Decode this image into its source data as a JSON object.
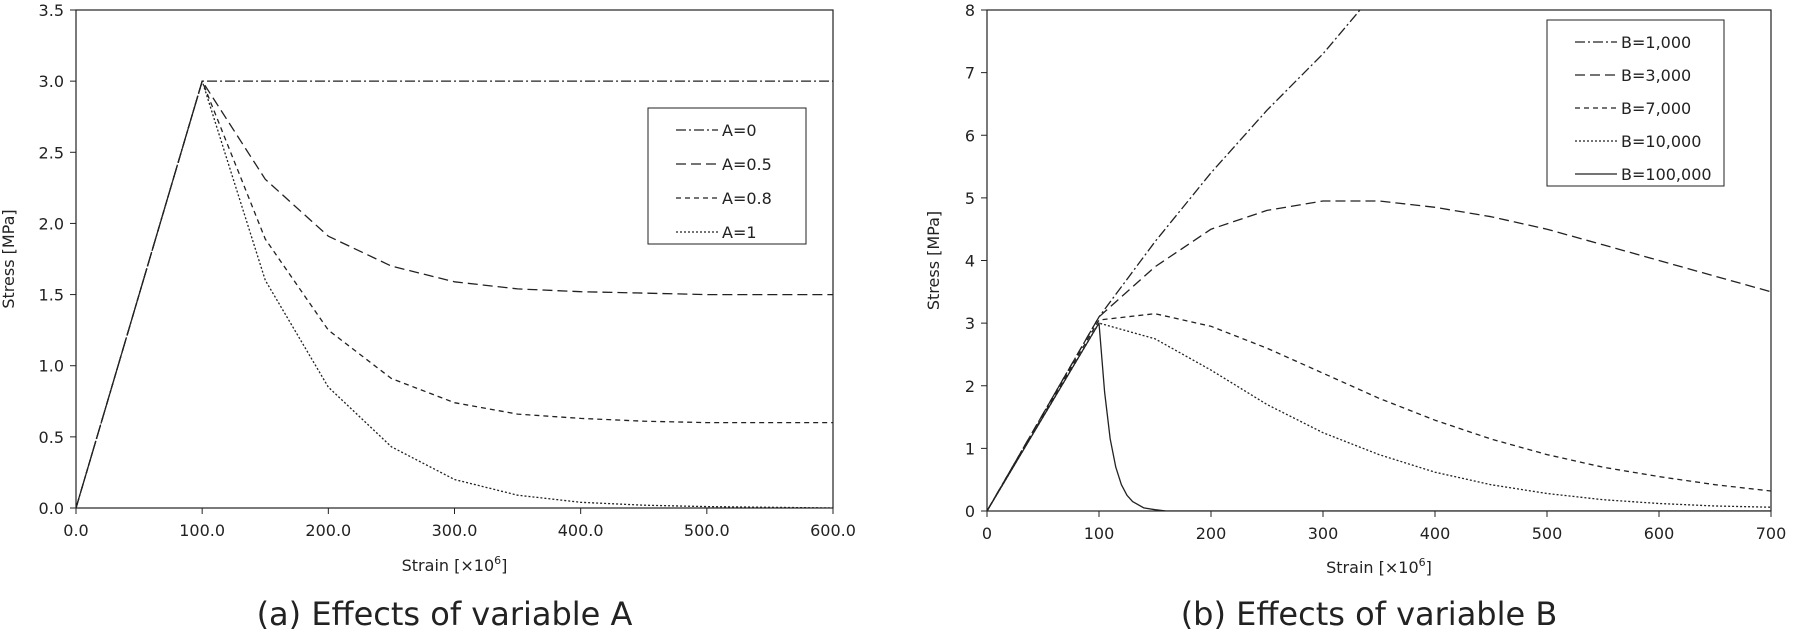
{
  "chart_data": [
    {
      "type": "line",
      "caption": "(a) Effects of variable A",
      "xlabel": "Strain [×10",
      "xlabel_sup": "6",
      "xlabel_end": "]",
      "ylabel": "Stress [MPa]",
      "xlim": [
        0,
        600
      ],
      "ylim": [
        0,
        3.5
      ],
      "xticks": [
        "0.0",
        "100.0",
        "200.0",
        "300.0",
        "400.0",
        "500.0",
        "600.0"
      ],
      "xtick_values": [
        0,
        100,
        200,
        300,
        400,
        500,
        600
      ],
      "yticks": [
        "0.0",
        "0.5",
        "1.0",
        "1.5",
        "2.0",
        "2.5",
        "3.0",
        "3.5"
      ],
      "ytick_values": [
        0,
        0.5,
        1.0,
        1.5,
        2.0,
        2.5,
        3.0,
        3.5
      ],
      "legend_position": "right",
      "series": [
        {
          "name": "A=0",
          "dash": "dashdot",
          "x": [
            0,
            100,
            600
          ],
          "y": [
            0,
            3.0,
            3.0
          ]
        },
        {
          "name": "A=0.5",
          "dash": "longdash",
          "x": [
            0,
            100,
            150,
            200,
            250,
            300,
            350,
            400,
            450,
            500,
            600
          ],
          "y": [
            0,
            3.0,
            2.31,
            1.91,
            1.7,
            1.59,
            1.54,
            1.52,
            1.51,
            1.5,
            1.5
          ]
        },
        {
          "name": "A=0.8",
          "dash": "shortdash",
          "x": [
            0,
            100,
            150,
            200,
            250,
            300,
            350,
            400,
            450,
            500,
            600
          ],
          "y": [
            0,
            3.0,
            1.89,
            1.25,
            0.91,
            0.74,
            0.66,
            0.63,
            0.61,
            0.6,
            0.6
          ]
        },
        {
          "name": "A=1",
          "dash": "dotted",
          "x": [
            0,
            100,
            150,
            200,
            250,
            300,
            350,
            400,
            450,
            500,
            600
          ],
          "y": [
            0,
            3.0,
            1.6,
            0.85,
            0.43,
            0.2,
            0.09,
            0.04,
            0.02,
            0.01,
            0.0
          ]
        }
      ]
    },
    {
      "type": "line",
      "caption": "(b) Effects of variable B",
      "xlabel": "Strain [×10",
      "xlabel_sup": "6",
      "xlabel_end": "]",
      "ylabel": "Stress [MPa]",
      "xlim": [
        0,
        700
      ],
      "ylim": [
        0,
        8
      ],
      "xticks": [
        "0",
        "100",
        "200",
        "300",
        "400",
        "500",
        "600",
        "700"
      ],
      "xtick_values": [
        0,
        100,
        200,
        300,
        400,
        500,
        600,
        700
      ],
      "yticks": [
        "0",
        "1",
        "2",
        "3",
        "4",
        "5",
        "6",
        "7",
        "8"
      ],
      "ytick_values": [
        0,
        1,
        2,
        3,
        4,
        5,
        6,
        7,
        8
      ],
      "legend_position": "top-right",
      "series": [
        {
          "name": "B=1,000",
          "dash": "dashdot",
          "x": [
            0,
            100,
            150,
            200,
            250,
            300,
            333
          ],
          "y": [
            0,
            3.1,
            4.3,
            5.4,
            6.4,
            7.3,
            8.0
          ]
        },
        {
          "name": "B=3,000",
          "dash": "longdash",
          "x": [
            0,
            100,
            150,
            200,
            250,
            300,
            350,
            400,
            450,
            500,
            550,
            600,
            650,
            700
          ],
          "y": [
            0,
            3.1,
            3.9,
            4.5,
            4.8,
            4.95,
            4.95,
            4.85,
            4.7,
            4.5,
            4.25,
            4.0,
            3.75,
            3.5
          ]
        },
        {
          "name": "B=7,000",
          "dash": "shortdash",
          "x": [
            0,
            100,
            150,
            200,
            250,
            300,
            350,
            400,
            450,
            500,
            550,
            600,
            650,
            700
          ],
          "y": [
            0,
            3.05,
            3.15,
            2.95,
            2.6,
            2.2,
            1.8,
            1.45,
            1.15,
            0.9,
            0.7,
            0.55,
            0.42,
            0.32
          ]
        },
        {
          "name": "B=10,000",
          "dash": "dotted",
          "x": [
            0,
            100,
            150,
            200,
            250,
            300,
            350,
            400,
            450,
            500,
            550,
            600,
            650,
            700
          ],
          "y": [
            0,
            3.0,
            2.75,
            2.25,
            1.7,
            1.25,
            0.9,
            0.62,
            0.42,
            0.28,
            0.18,
            0.12,
            0.08,
            0.06
          ]
        },
        {
          "name": "B=100,000",
          "dash": "solid",
          "x": [
            0,
            100,
            105,
            110,
            115,
            120,
            125,
            130,
            140,
            150,
            160,
            700
          ],
          "y": [
            0,
            3.0,
            1.9,
            1.15,
            0.7,
            0.42,
            0.25,
            0.15,
            0.05,
            0.02,
            0.0,
            0.0
          ]
        }
      ]
    }
  ]
}
